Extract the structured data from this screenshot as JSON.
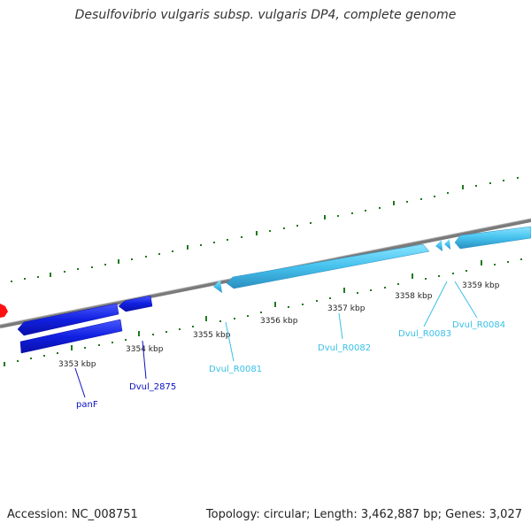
{
  "title": "Desulfovibrio vulgaris subsp. vulgaris DP4, complete genome",
  "footer": {
    "accession": "Accession: NC_008751",
    "summary": "Topology: circular; Length: 3,462,887 bp; Genes: 3,027"
  },
  "colors": {
    "backbone": "#888888",
    "ticks": "#1f7a1f",
    "forward_genes": "#4cc4ec",
    "reverse_genes": "#0a14d9",
    "rna_label": "#38c0e8",
    "gene_label": "#0a10c0",
    "marker": "#ff1010"
  },
  "kbp_labels": [
    "3353 kbp",
    "3354 kbp",
    "3355 kbp",
    "3356 kbp",
    "3357 kbp",
    "3358 kbp",
    "3359 kbp"
  ],
  "gene_labels": [
    "panF",
    "Dvul_2875",
    "Dvul_R0081",
    "Dvul_R0082",
    "Dvul_R0083",
    "Dvul_R0084"
  ]
}
